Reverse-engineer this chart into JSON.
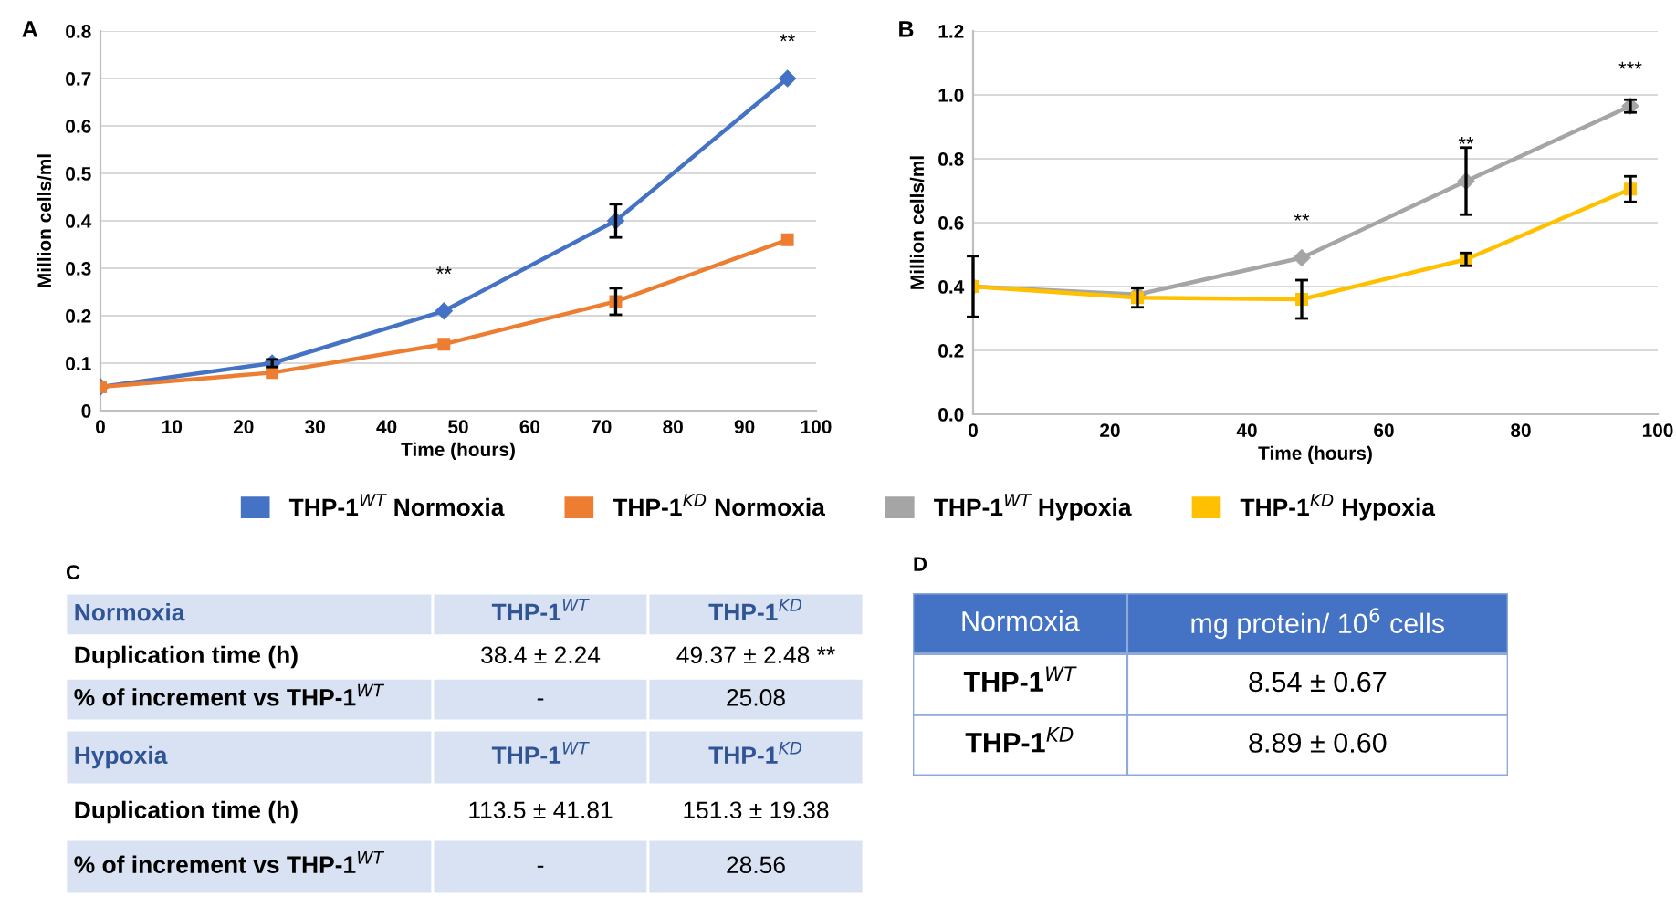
{
  "chart_data": [
    {
      "type": "line",
      "title": "A",
      "xlabel": "Time (hours)",
      "ylabel": "Million cells/ml",
      "x": [
        0,
        24,
        48,
        72,
        96
      ],
      "xlim": [
        0,
        100
      ],
      "xticks": [
        0,
        10,
        20,
        30,
        40,
        50,
        60,
        70,
        80,
        90,
        100
      ],
      "ylim": [
        0,
        0.8
      ],
      "yticks": [
        0,
        0.1,
        0.2,
        0.3,
        0.4,
        0.5,
        0.6,
        0.7,
        0.8
      ],
      "grid": "y",
      "legend": "bottom",
      "line_style": "solid",
      "series": [
        {
          "name": "THP-1$^{WT}$ Normoxia",
          "color": "#4472c4",
          "marker": "diamond",
          "values": [
            0.05,
            0.1,
            0.21,
            0.4,
            0.7
          ],
          "errors": [
            null,
            0.008,
            null,
            0.035,
            null
          ]
        },
        {
          "name": "THP-1$^{KD}$ Normoxia",
          "color": "#ed7d31",
          "marker": "square",
          "values": [
            0.05,
            0.08,
            0.14,
            0.23,
            0.36
          ],
          "errors": [
            null,
            null,
            null,
            0.028,
            null
          ]
        }
      ],
      "annotations": [
        {
          "text": "**",
          "x": 48,
          "y": 0.21
        },
        {
          "text": "**",
          "x": 96,
          "y": 0.7
        }
      ]
    },
    {
      "type": "line",
      "title": "B",
      "xlabel": "Time (hours)",
      "ylabel": "Million cells/ml",
      "x": [
        0,
        24,
        48,
        72,
        96
      ],
      "xlim": [
        0,
        100
      ],
      "xticks": [
        0,
        20,
        40,
        60,
        80,
        100
      ],
      "ylim": [
        0,
        1.2
      ],
      "yticks": [
        {
          "value": 0,
          "label": "0.0"
        },
        {
          "value": 0.2,
          "label": "0.2"
        },
        {
          "value": 0.4,
          "label": "0.4"
        },
        {
          "value": 0.6,
          "label": "0.6"
        },
        {
          "value": 0.8,
          "label": "0.8"
        },
        {
          "value": 1.0,
          "label": "1.0"
        },
        {
          "value": 1.2,
          "label": "1.2"
        }
      ],
      "grid": "y",
      "legend": "bottom",
      "line_style": "solid",
      "series": [
        {
          "name": "THP-1$^{WT}$ Hypoxia",
          "color": "#a5a5a5",
          "marker": "diamond",
          "values": [
            0.4,
            0.375,
            0.49,
            0.73,
            0.965
          ],
          "errors": [
            null,
            null,
            null,
            0.105,
            0.02
          ]
        },
        {
          "name": "THP-1$^{KD}$ Hypoxia",
          "color": "#ffc000",
          "marker": "square",
          "values": [
            0.4,
            0.365,
            0.36,
            0.485,
            0.705
          ],
          "errors": [
            0.095,
            0.03,
            0.06,
            0.02,
            0.04
          ]
        }
      ],
      "annotations": [
        {
          "text": "**",
          "x": 48,
          "y": 0.49
        },
        {
          "text": "**",
          "x": 72,
          "y": 0.73
        },
        {
          "text": "***",
          "x": 96,
          "y": 0.965
        }
      ]
    },
    {
      "type": "other",
      "title": "C",
      "ylabel": "Normoxia",
      "categories": [
        "THP-1$^{WT}$",
        "THP-1$^{KD}$"
      ],
      "y_categories": [
        "Duplication time (h)",
        "% of increment vs THP-1$^{WT}$"
      ],
      "cell_labels": [
        [
          "38.4 ± 2.24",
          "49.37 ± 2.48 **"
        ],
        [
          "-",
          "25.08"
        ]
      ]
    },
    {
      "type": "other",
      "ylabel": "Hypoxia",
      "categories": [
        "THP-1$^{WT}$",
        "THP-1$^{KD}$"
      ],
      "y_categories": [
        "Duplication time (h)",
        "% of increment vs THP-1$^{WT}$"
      ],
      "cell_labels": [
        [
          "113.5 ± 41.81",
          "151.3 ± 19.38"
        ],
        [
          "-",
          "28.56"
        ]
      ]
    },
    {
      "type": "other",
      "title": "D",
      "ylabel": "Normoxia",
      "categories": [
        "mg protein/ 10$^{6}$ cells"
      ],
      "y_categories": [
        "THP-1$^{WT}$",
        "THP-1$^{KD}$"
      ],
      "cell_labels": [
        [
          "8.54 ± 0.67"
        ],
        [
          "8.89 ± 0.60"
        ]
      ]
    }
  ]
}
